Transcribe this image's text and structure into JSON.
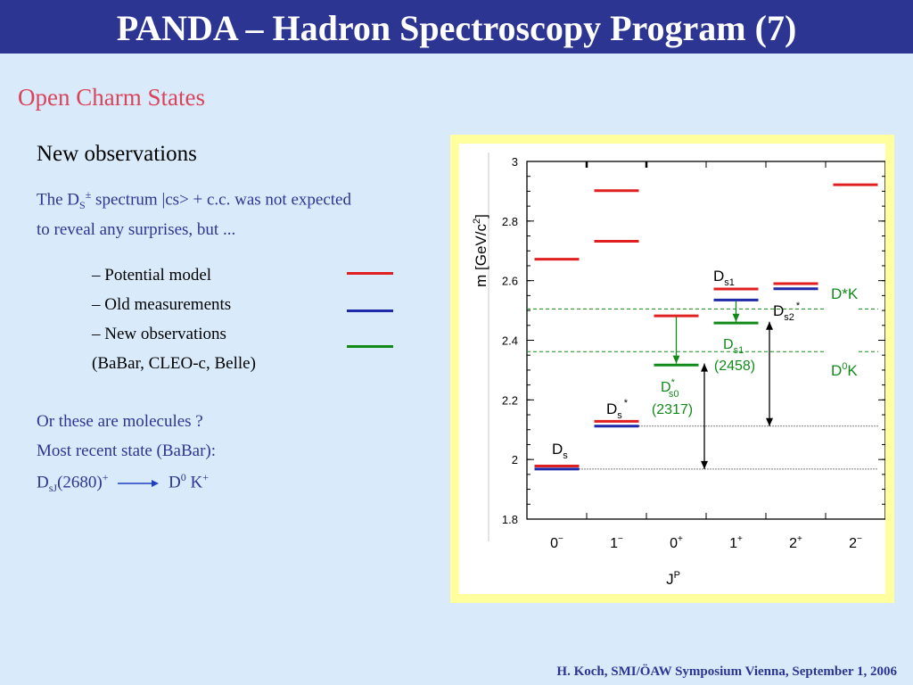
{
  "slide": {
    "title": "PANDA – Hadron Spectroscopy Program (7)",
    "subtitle": "Open Charm States",
    "heading": "New observations",
    "intro_line1_pre": "The D",
    "intro_sub": "S",
    "intro_sup": "±",
    "intro_line1_post": " spectrum |cs> + c.c. was not expected",
    "intro_line2": "to reveal any surprises, but ...",
    "legend": [
      {
        "label": "–   Potential model",
        "color": "#e02020"
      },
      {
        "label": "–   Old measurements",
        "color": "#1e2aa8"
      },
      {
        "label": "–   New observations",
        "color": "#128a1a"
      }
    ],
    "legend_source": "(BaBar, CLEO-c, Belle)",
    "question1": "Or these are molecules ?",
    "question2": "Most recent state (BaBar):",
    "reaction": {
      "lhs_main": "D",
      "lhs_sub": "sJ",
      "lhs_rest": "(2680)",
      "lhs_sup": "+",
      "rhs_d": "D",
      "rhs_d_sup": "0",
      "rhs_k": " K",
      "rhs_k_sup": "+"
    },
    "footer": "H. Koch, SMI/ÖAW Symposium Vienna, September 1, 2006"
  },
  "chart_data": {
    "type": "level-diagram",
    "ylabel_main": "m [GeV/c",
    "ylabel_sup": "2",
    "ylabel_end": "]",
    "xlabel_main": "J",
    "xlabel_sup": "P",
    "ylim": [
      1.8,
      3.0
    ],
    "yticks": [
      "1.8",
      "2",
      "2.2",
      "2.4",
      "2.6",
      "2.8",
      "3"
    ],
    "ytick_values": [
      1.8,
      2.0,
      2.2,
      2.4,
      2.6,
      2.8,
      3.0
    ],
    "categories": [
      {
        "j": "0",
        "p": "−"
      },
      {
        "j": "1",
        "p": "−"
      },
      {
        "j": "0",
        "p": "+"
      },
      {
        "j": "1",
        "p": "+"
      },
      {
        "j": "2",
        "p": "+"
      },
      {
        "j": "2",
        "p": "−"
      }
    ],
    "levels": [
      {
        "category": 0,
        "mass": 2.672,
        "kind": "potential"
      },
      {
        "category": 0,
        "mass": 1.978,
        "kind": "potential"
      },
      {
        "category": 0,
        "mass": 1.968,
        "kind": "old"
      },
      {
        "category": 1,
        "mass": 2.902,
        "kind": "potential"
      },
      {
        "category": 1,
        "mass": 2.732,
        "kind": "potential"
      },
      {
        "category": 1,
        "mass": 2.128,
        "kind": "potential"
      },
      {
        "category": 1,
        "mass": 2.112,
        "kind": "old"
      },
      {
        "category": 2,
        "mass": 2.482,
        "kind": "potential"
      },
      {
        "category": 2,
        "mass": 2.317,
        "kind": "new"
      },
      {
        "category": 3,
        "mass": 2.572,
        "kind": "potential"
      },
      {
        "category": 3,
        "mass": 2.535,
        "kind": "old"
      },
      {
        "category": 3,
        "mass": 2.458,
        "kind": "new"
      },
      {
        "category": 4,
        "mass": 2.59,
        "kind": "potential"
      },
      {
        "category": 4,
        "mass": 2.573,
        "kind": "old"
      },
      {
        "category": 5,
        "mass": 2.922,
        "kind": "potential"
      }
    ],
    "colors": {
      "potential": "#e02020",
      "old": "#1e2aa8",
      "new": "#128a1a",
      "threshold": "#128a1a"
    },
    "thresholds": [
      {
        "label_main": "D*K",
        "label_sup": "",
        "label_rest": "",
        "mass": 2.505
      },
      {
        "label_main": "D",
        "label_sup": "0",
        "label_rest": "K",
        "mass": 2.362
      }
    ],
    "dotted_lines": [
      2.112,
      1.968
    ],
    "state_labels": {
      "ds": {
        "main": "D",
        "sub": "s"
      },
      "dsstar": {
        "main": "D",
        "sub": "s",
        "sup": "*"
      },
      "ds1": {
        "main": "D",
        "sub": "s1"
      },
      "ds2": {
        "main": "D",
        "sub": "s2",
        "sup": "*"
      },
      "ds0new": {
        "main": "D",
        "sup": "*",
        "sub": "s0",
        "mass": "(2317)"
      },
      "ds1new": {
        "main": "D",
        "sub": "s1",
        "mass": "(2458)"
      }
    }
  }
}
